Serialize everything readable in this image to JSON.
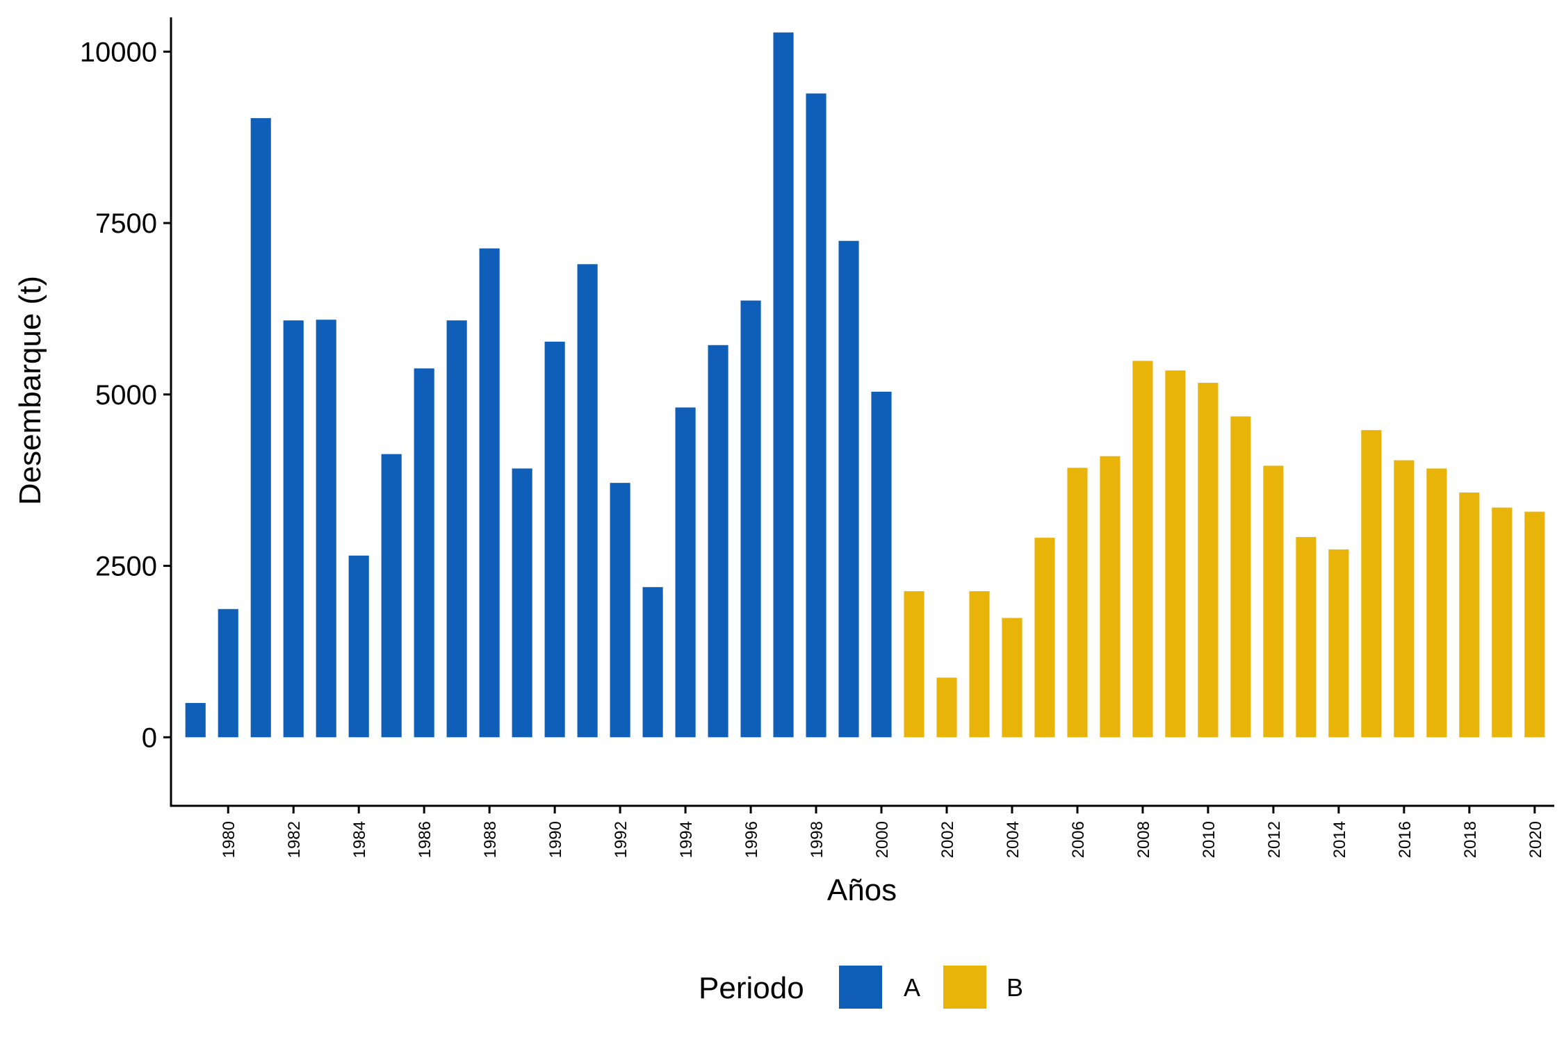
{
  "chart_data": {
    "type": "bar",
    "title": "",
    "xlabel": "Años",
    "ylabel": "Desembarque (t)",
    "ylim": [
      -1000,
      10500
    ],
    "y_ticks": [
      0,
      2500,
      5000,
      7500,
      10000
    ],
    "x_tick_labels": [
      "1980",
      "1982",
      "1984",
      "1986",
      "1988",
      "1990",
      "1992",
      "1994",
      "1996",
      "1998",
      "2000",
      "2002",
      "2004",
      "2006",
      "2008",
      "2010",
      "2012",
      "2014",
      "2016",
      "2018",
      "2020"
    ],
    "categories": [
      1979,
      1980,
      1981,
      1982,
      1983,
      1984,
      1985,
      1986,
      1987,
      1988,
      1989,
      1990,
      1991,
      1992,
      1993,
      1994,
      1995,
      1996,
      1997,
      1998,
      1999,
      2000,
      2001,
      2002,
      2003,
      2004,
      2005,
      2006,
      2007,
      2008,
      2009,
      2010,
      2011,
      2012,
      2013,
      2014,
      2015,
      2016,
      2017,
      2018,
      2019,
      2020
    ],
    "values": [
      500,
      1870,
      9030,
      6080,
      6090,
      2650,
      4130,
      5380,
      6080,
      7130,
      3920,
      5770,
      6900,
      3710,
      2190,
      4810,
      5720,
      6370,
      10280,
      9390,
      7240,
      5040,
      2130,
      870,
      2130,
      1740,
      2910,
      3930,
      4100,
      5490,
      5350,
      5170,
      4680,
      3960,
      2920,
      2740,
      4480,
      4040,
      3920,
      3570,
      3350,
      3290
    ],
    "groups": [
      "A",
      "A",
      "A",
      "A",
      "A",
      "A",
      "A",
      "A",
      "A",
      "A",
      "A",
      "A",
      "A",
      "A",
      "A",
      "A",
      "A",
      "A",
      "A",
      "A",
      "A",
      "A",
      "B",
      "B",
      "B",
      "B",
      "B",
      "B",
      "B",
      "B",
      "B",
      "B",
      "B",
      "B",
      "B",
      "B",
      "B",
      "B",
      "B",
      "B",
      "B",
      "B"
    ],
    "legend": {
      "title": "Periodo",
      "position": "bottom",
      "items": [
        {
          "label": "A",
          "color": "#0F5FB8"
        },
        {
          "label": "B",
          "color": "#E8B40A"
        }
      ]
    },
    "grid": false
  }
}
